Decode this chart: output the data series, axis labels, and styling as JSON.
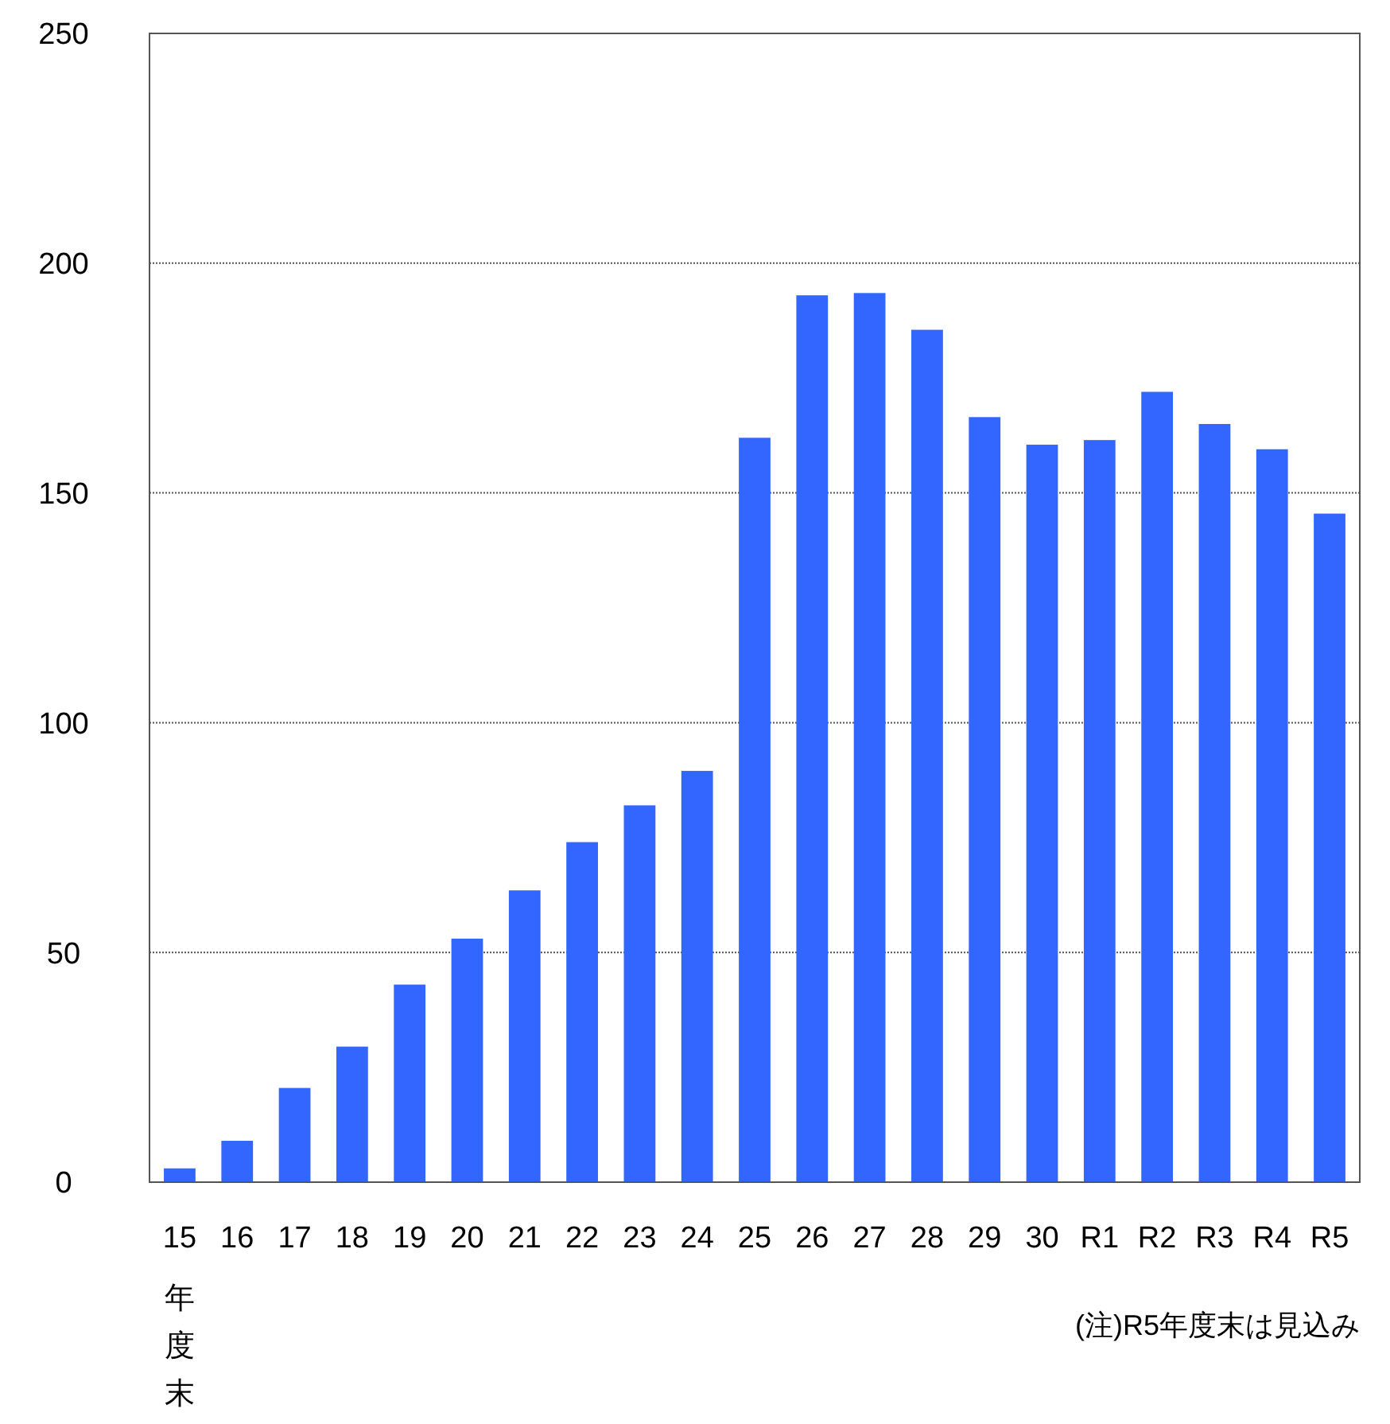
{
  "chart_data": {
    "type": "bar",
    "xlabel": "年度末",
    "categories": [
      "15",
      "16",
      "17",
      "18",
      "19",
      "20",
      "21",
      "22",
      "23",
      "24",
      "25",
      "26",
      "27",
      "28",
      "29",
      "30",
      "R1",
      "R2",
      "R3",
      "R4",
      "R5"
    ],
    "values": [
      3,
      9,
      20.5,
      29.5,
      43,
      53,
      63.5,
      74,
      82,
      89.5,
      162,
      193,
      193.5,
      185.5,
      166.5,
      160.5,
      161.5,
      172,
      165,
      159.5,
      145.5
    ],
    "color": "#3366ff",
    "ylim": [
      0,
      250
    ],
    "yticks": [
      0,
      50,
      100,
      150,
      200,
      250
    ],
    "grid": "y",
    "annotations": [
      "(注)R5年度末は見込み"
    ]
  }
}
